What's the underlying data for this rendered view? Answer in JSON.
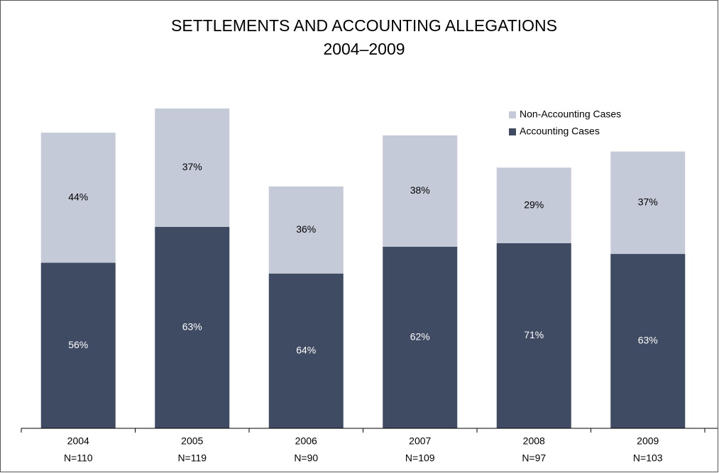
{
  "chart_data": {
    "type": "stacked-bar",
    "title": "SETTLEMENTS AND ACCOUNTING ALLEGATIONS",
    "subtitle": "2004–2009",
    "categories": [
      "2004",
      "2005",
      "2006",
      "2007",
      "2008",
      "2009"
    ],
    "n": [
      110,
      119,
      90,
      109,
      97,
      103
    ],
    "n_labels": [
      "N=110",
      "N=119",
      "N=90",
      "N=109",
      "N=97",
      "N=103"
    ],
    "series": [
      {
        "name": "Accounting Cases",
        "color": "#3f4a63",
        "label_color": "#ffffff",
        "values": [
          56,
          63,
          64,
          62,
          71,
          63
        ],
        "value_labels": [
          "56%",
          "63%",
          "64%",
          "62%",
          "71%",
          "63%"
        ]
      },
      {
        "name": "Non-Accounting Cases",
        "color": "#c5cad8",
        "label_color": "#000000",
        "values": [
          44,
          37,
          36,
          38,
          29,
          37
        ],
        "value_labels": [
          "44%",
          "37%",
          "36%",
          "38%",
          "29%",
          "37%"
        ]
      }
    ],
    "legend": "top-right"
  }
}
